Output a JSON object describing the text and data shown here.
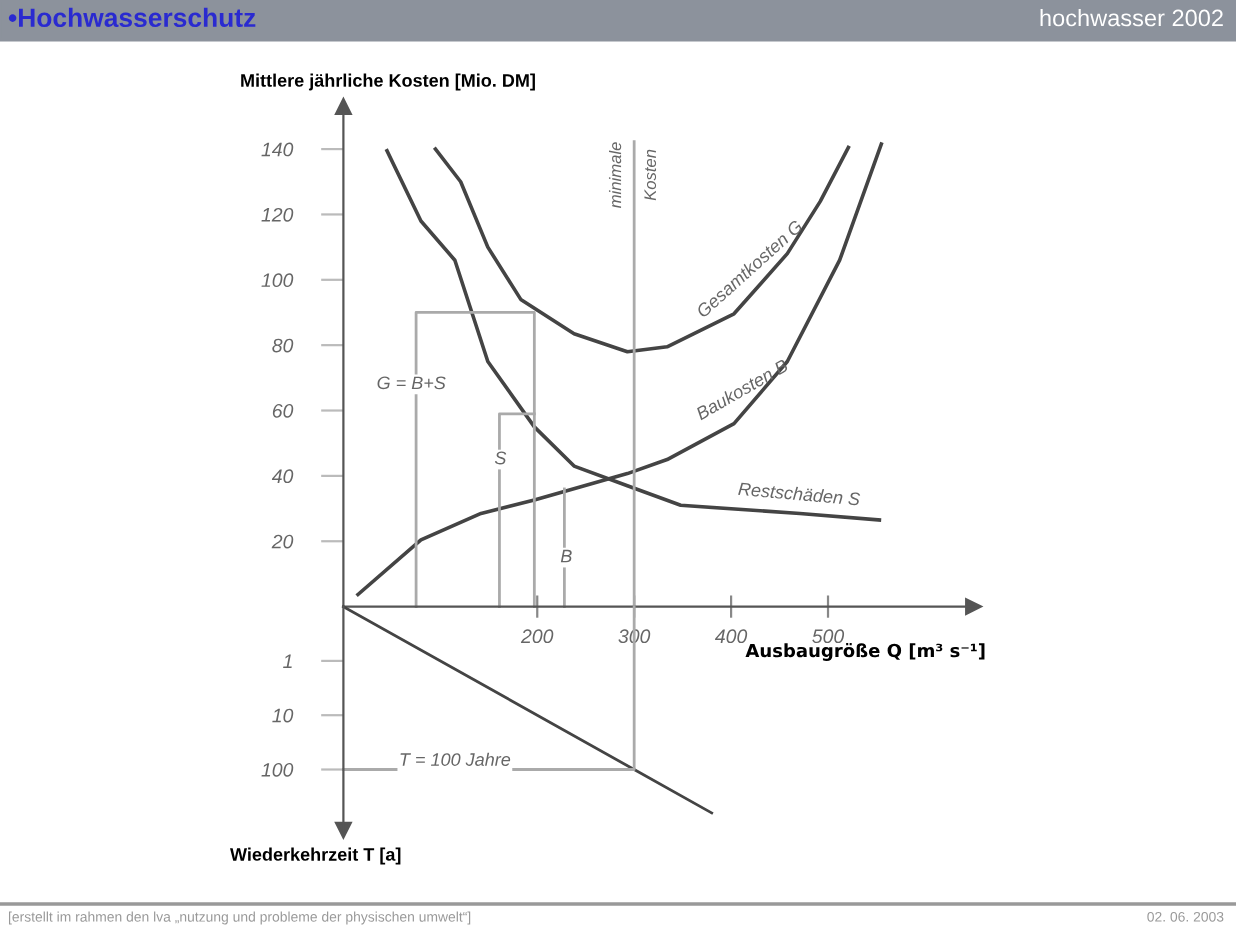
{
  "chart_data": [
    {
      "type": "line",
      "title": "•Hochwasserschutz",
      "ylabel": "Mittlere jährliche Kosten [Mio. DM]",
      "xlabel": "Ausbaugröße Q [m³ s⁻¹]",
      "annotations": [
        {
          "text": "G = B+S",
          "x": 70,
          "y": 68
        },
        {
          "text": "S",
          "x": 162,
          "y": 45
        },
        {
          "text": "B",
          "x": 230,
          "y": 15
        },
        "hochwasser 2002",
        "[erstellt im rahmen den lva „nutzung und probleme der physischen umwelt“]",
        "02. 06. 2003"
      ],
      "series": [
        {
          "name": "Gesamtkosten G",
          "color": "#444444",
          "x": [
            95,
            121,
            149,
            183,
            238,
            293,
            334,
            403,
            458,
            492,
            521
          ],
          "values": [
            140,
            130,
            110,
            94,
            83.5,
            78,
            79.5,
            89.6,
            108,
            124,
            140.5
          ]
        },
        {
          "name": "Baukosten B",
          "color": "#444444",
          "x": [
            15,
            80,
            142,
            197,
            245,
            293,
            334,
            403,
            458,
            512,
            555
          ],
          "values": [
            3.7,
            20.4,
            28.5,
            32.6,
            36.7,
            40.7,
            45,
            56,
            75,
            106,
            141.5
          ]
        },
        {
          "name": "Restschäden S",
          "color": "#444444",
          "x": [
            45,
            80,
            115,
            149,
            197,
            238,
            293,
            348,
            471,
            553
          ],
          "values": [
            139.5,
            118,
            106,
            75,
            55,
            43,
            37,
            31,
            28.5,
            26.5
          ]
        },
        {
          "color": "#aaaaaa",
          "x": [
            75,
            75,
            197,
            197
          ],
          "values": [
            0,
            90,
            90,
            0
          ]
        },
        {
          "color": "#aaaaaa",
          "x": [
            161,
            161,
            197
          ],
          "values": [
            0,
            59,
            59
          ]
        },
        {
          "color": "#aaaaaa",
          "x": [
            228,
            228
          ],
          "values": [
            0,
            36
          ]
        }
      ],
      "ref_lines": [
        {
          "axis": "x",
          "value": 300,
          "label": "minimale Kosten",
          "color": "#aaaaaa"
        }
      ],
      "xlim": [
        0,
        650
      ],
      "ylim": [
        0,
        153
      ],
      "xticks": [
        200,
        300,
        400,
        500
      ],
      "yticks": [
        20,
        40,
        60,
        80,
        100,
        120,
        140
      ],
      "grid": false,
      "legend": false,
      "marker": "none",
      "line_style": "solid"
    },
    {
      "type": "line",
      "ylabel": "Wiederkehrzeit T [a]",
      "log": "y",
      "annotations": [
        {
          "text": "T = 100 Jahre",
          "x": 115,
          "y": 100
        }
      ],
      "series": [
        {
          "color": "#444444",
          "x": [
            0,
            300,
            380
          ],
          "values": [
            0.1,
            100,
            631
          ]
        },
        {
          "color": "#aaaaaa",
          "x": [
            0,
            300,
            300
          ],
          "values": [
            100,
            100,
            0.1
          ]
        }
      ],
      "xlim": [
        0,
        650
      ],
      "ylim": [
        1300,
        0.1
      ],
      "yticks": [
        1,
        10,
        100
      ],
      "tick_labels": "y",
      "grid": false,
      "legend": false,
      "marker": "none",
      "line_style": "solid"
    }
  ]
}
